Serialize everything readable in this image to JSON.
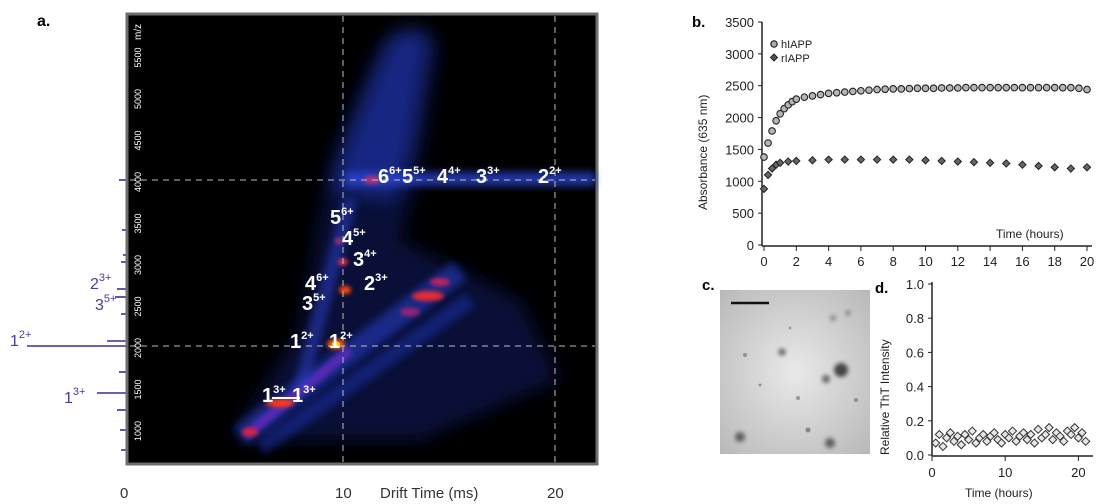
{
  "figure": {
    "a": {
      "label": "a.",
      "mz_label": "m/z",
      "mz_ticks": [
        "1000",
        "1500",
        "2000",
        "2500",
        "3000",
        "3500",
        "4000",
        "4500",
        "5000",
        "5500"
      ],
      "x_ticks": [
        "0",
        "10",
        "20"
      ],
      "xlabel": "Drift Time (ms)",
      "spectrum_peaks": [
        {
          "base": "1",
          "charge": "2+"
        },
        {
          "base": "2",
          "charge": "3+"
        },
        {
          "base": "3",
          "charge": "5+"
        },
        {
          "base": "1",
          "charge": "3+"
        }
      ],
      "oligomer_labels": [
        {
          "base": "6",
          "charge": "6+"
        },
        {
          "base": "5",
          "charge": "5+"
        },
        {
          "base": "4",
          "charge": "4+"
        },
        {
          "base": "3",
          "charge": "3+"
        },
        {
          "base": "2",
          "charge": "2+"
        },
        {
          "base": "5",
          "charge": "6+"
        },
        {
          "base": "4",
          "charge": "5+"
        },
        {
          "base": "3",
          "charge": "4+"
        },
        {
          "base": "4",
          "charge": "6+"
        },
        {
          "base": "2",
          "charge": "3+"
        },
        {
          "base": "3",
          "charge": "5+"
        },
        {
          "base": "1",
          "charge": "2+"
        },
        {
          "base": "1",
          "charge": "2+"
        },
        {
          "base": "1",
          "charge": "3+"
        },
        {
          "base": "1",
          "charge": "3+"
        }
      ]
    },
    "b": {
      "label": "b.",
      "ylabel": "Absorbance (635 nm)",
      "xlabel": "Time (hours)",
      "y_ticks": [
        "0",
        "500",
        "1000",
        "1500",
        "2000",
        "2500",
        "3000",
        "3500"
      ],
      "x_ticks": [
        "0",
        "2",
        "4",
        "6",
        "8",
        "10",
        "12",
        "14",
        "16",
        "18",
        "20"
      ],
      "legend": [
        "hIAPP",
        "rIAPP"
      ]
    },
    "c": {
      "label": "c."
    },
    "d": {
      "label": "d.",
      "ylabel": "Relative ThT Intensity",
      "xlabel": "Time (hours)",
      "y_ticks": [
        "0.0",
        "0.2",
        "0.4",
        "0.6",
        "0.8",
        "1.0"
      ],
      "x_ticks": [
        "0",
        "10",
        "20"
      ]
    }
  },
  "chart_data": [
    {
      "panel": "a",
      "type": "heatmap",
      "x_axis": "drift time (ms)",
      "y_axis": "m/z",
      "xlim": [
        0,
        25
      ],
      "ylim": [
        600,
        6000
      ],
      "grid": "dashed lines at 10 and 20 ms; 2000 and 4000 m/z",
      "features": [
        {
          "label": "1 2+",
          "drift_ms": 10,
          "mz": 2000
        },
        {
          "label": "1 3+",
          "drift_ms": 7.2,
          "mz": 1330
        },
        {
          "label": "2 3+",
          "drift_ms": 10.1,
          "mz": 2650
        },
        {
          "label": "3 4+",
          "drift_ms": 9.9,
          "mz": 3000
        },
        {
          "label": "4 5+",
          "drift_ms": 9.7,
          "mz": 3200
        },
        {
          "label": "6 6+ … 2 2+ (4000 m/z band)",
          "drift_ms": [
            11,
            24
          ],
          "mz": 4000
        }
      ]
    },
    {
      "panel": "b",
      "type": "scatter",
      "xlabel": "Time (hours)",
      "ylabel": "Absorbance (635 nm)",
      "xlim": [
        0,
        20
      ],
      "ylim": [
        0,
        3500
      ],
      "legend_position": "top-left",
      "series": [
        {
          "name": "hIAPP",
          "marker": "circle",
          "x": [
            0,
            0.25,
            0.5,
            0.75,
            1,
            1.25,
            1.5,
            1.75,
            2,
            2.5,
            3,
            3.5,
            4,
            4.5,
            5,
            5.5,
            6,
            6.5,
            7,
            7.5,
            8,
            8.5,
            9,
            9.5,
            10,
            10.5,
            11,
            11.5,
            12,
            12.5,
            13,
            13.5,
            14,
            14.5,
            15,
            15.5,
            16,
            16.5,
            17,
            17.5,
            18,
            18.5,
            19,
            19.5,
            20
          ],
          "y": [
            1380,
            1600,
            1790,
            1950,
            2060,
            2140,
            2200,
            2250,
            2290,
            2320,
            2340,
            2360,
            2380,
            2390,
            2400,
            2410,
            2420,
            2430,
            2440,
            2445,
            2450,
            2450,
            2455,
            2460,
            2460,
            2460,
            2465,
            2465,
            2465,
            2470,
            2470,
            2470,
            2470,
            2470,
            2470,
            2470,
            2470,
            2470,
            2470,
            2470,
            2470,
            2470,
            2470,
            2460,
            2440
          ]
        },
        {
          "name": "rIAPP",
          "marker": "diamond",
          "x": [
            0,
            0.25,
            0.5,
            0.75,
            1,
            1.5,
            2,
            3,
            4,
            5,
            6,
            7,
            8,
            9,
            10,
            11,
            12,
            13,
            14,
            15,
            16,
            17,
            18,
            19,
            20
          ],
          "y": [
            880,
            1100,
            1200,
            1260,
            1290,
            1310,
            1320,
            1330,
            1340,
            1340,
            1340,
            1340,
            1340,
            1340,
            1330,
            1320,
            1310,
            1300,
            1290,
            1280,
            1260,
            1240,
            1220,
            1200,
            1220
          ]
        }
      ]
    },
    {
      "panel": "d",
      "type": "scatter",
      "xlabel": "Time (hours)",
      "ylabel": "Relative ThT Intensity",
      "xlim": [
        0,
        22
      ],
      "ylim": [
        0,
        1.0
      ],
      "series": [
        {
          "marker": "diamond",
          "x": [
            0.5,
            1,
            1.5,
            2,
            2.5,
            3,
            3.5,
            4,
            4.5,
            5,
            5.5,
            6,
            6.5,
            7,
            7.5,
            8,
            8.5,
            9,
            9.5,
            10,
            10.5,
            11,
            11.5,
            12,
            12.5,
            13,
            13.5,
            14,
            14.5,
            15,
            15.5,
            16,
            16.5,
            17,
            17.5,
            18,
            18.5,
            19,
            19.5,
            20,
            20.5,
            21
          ],
          "y": [
            0.07,
            0.12,
            0.05,
            0.1,
            0.13,
            0.08,
            0.11,
            0.06,
            0.12,
            0.09,
            0.14,
            0.07,
            0.1,
            0.12,
            0.08,
            0.11,
            0.13,
            0.09,
            0.07,
            0.12,
            0.1,
            0.14,
            0.08,
            0.11,
            0.13,
            0.09,
            0.12,
            0.07,
            0.15,
            0.1,
            0.12,
            0.16,
            0.09,
            0.13,
            0.11,
            0.08,
            0.14,
            0.12,
            0.16,
            0.1,
            0.13,
            0.08
          ]
        }
      ]
    }
  ]
}
